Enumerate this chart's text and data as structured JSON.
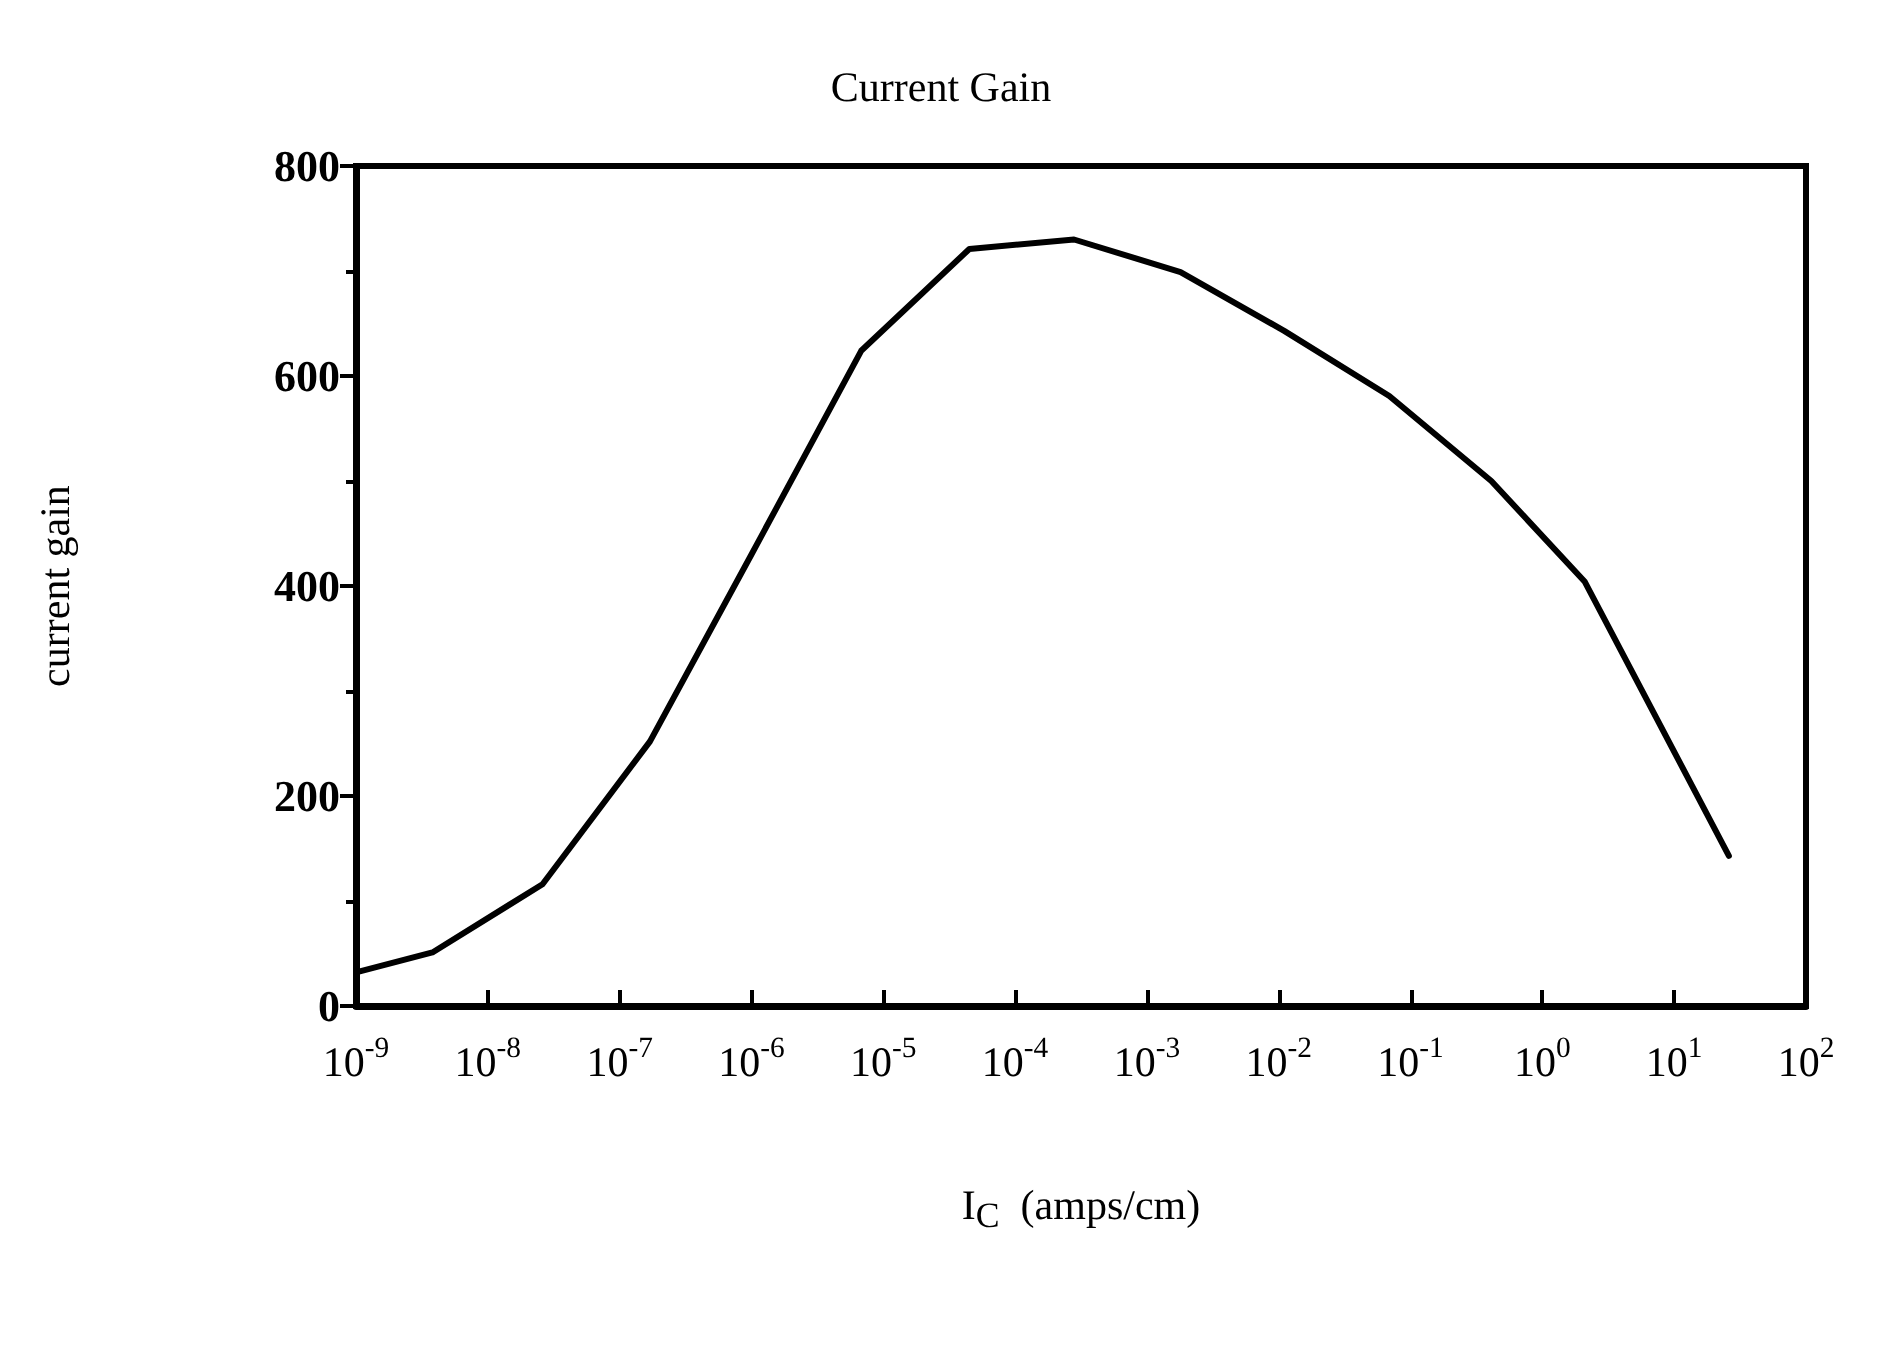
{
  "chart_data": {
    "type": "line",
    "title": "Current Gain",
    "xlabel": "I$_{C}$  (amps/cm)",
    "ylabel": "current gain",
    "log": "x",
    "x": [
      1e-09,
      3.8e-09,
      2.6e-08,
      1.7e-07,
      1e-06,
      6.8e-06,
      4.5e-05,
      0.00028,
      0.0018,
      0.011,
      0.069,
      0.41,
      2.1,
      26
    ],
    "series": [
      {
        "color": "#000000",
        "values": [
          32,
          51,
          116,
          252,
          430,
          624,
          721,
          730,
          699,
          643,
          581,
          500,
          404,
          143
        ]
      }
    ],
    "xlim": [
      1e-09,
      100
    ],
    "xticks": [
      {
        "value": 1e-09,
        "label": "10$^{-9}$"
      },
      {
        "value": 1e-08,
        "label": "10$^{-8}$"
      },
      {
        "value": 1e-07,
        "label": "10$^{-7}$"
      },
      {
        "value": 1e-06,
        "label": "10$^{-6}$"
      },
      {
        "value": 1e-05,
        "label": "10$^{-5}$"
      },
      {
        "value": 0.0001,
        "label": "10$^{-4}$"
      },
      {
        "value": 0.001,
        "label": "10$^{-3}$"
      },
      {
        "value": 0.01,
        "label": "10$^{-2}$"
      },
      {
        "value": 0.1,
        "label": "10$^{-1}$"
      },
      {
        "value": 1,
        "label": "10$^{0}$"
      },
      {
        "value": 10,
        "label": "10$^{1}$"
      },
      {
        "value": 100,
        "label": "10$^{2}$"
      }
    ],
    "ylim": [
      0,
      800
    ],
    "yticks": [
      0,
      200,
      400,
      600,
      800
    ],
    "grid": false,
    "marker": "none",
    "line_style": "solid"
  }
}
